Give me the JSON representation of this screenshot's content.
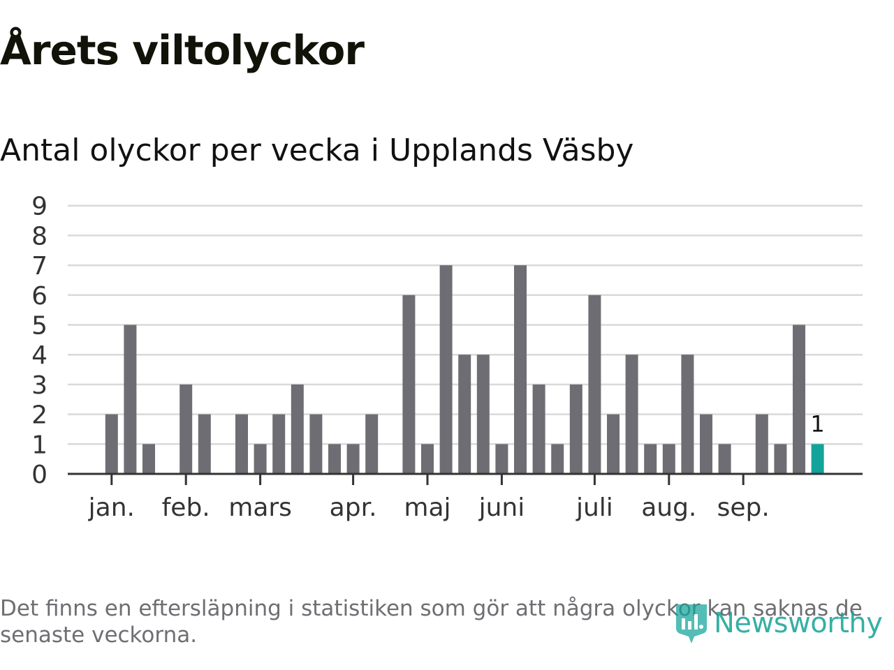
{
  "title": "Årets viltolyckor",
  "subtitle": "Antal olyckor per vecka i Upplands Väsby",
  "footnote": "Det finns en eftersläpning i statistiken som gör att några olyckor kan saknas de senaste veckorna.",
  "logo": {
    "text": "Newsworthy",
    "icon": "newsworthy-logo-icon"
  },
  "colors": {
    "bar": "#6e6d73",
    "highlight": "#12a39a",
    "grid": "#d9d9d9",
    "axis": "#333333",
    "text": "#111111",
    "muted": "#6e6e73"
  },
  "chart_data": {
    "type": "bar",
    "title": "Årets viltolyckor",
    "subtitle": "Antal olyckor per vecka i Upplands Väsby",
    "xlabel": "",
    "ylabel": "",
    "ylim": [
      0,
      9
    ],
    "yticks": [
      0,
      1,
      2,
      3,
      4,
      5,
      6,
      7,
      8,
      9
    ],
    "grid": true,
    "weeks": [
      1,
      2,
      3,
      4,
      5,
      6,
      7,
      8,
      9,
      10,
      11,
      12,
      13,
      14,
      15,
      16,
      17,
      18,
      19,
      20,
      21,
      22,
      23,
      24,
      25,
      26,
      27,
      28,
      29,
      30,
      31,
      32,
      33,
      34,
      35,
      36,
      37,
      38,
      39,
      40,
      41,
      42
    ],
    "values": [
      0,
      0,
      2,
      5,
      1,
      0,
      3,
      2,
      0,
      2,
      1,
      2,
      3,
      2,
      1,
      1,
      2,
      0,
      6,
      1,
      7,
      4,
      4,
      1,
      7,
      3,
      1,
      3,
      6,
      2,
      4,
      1,
      1,
      4,
      2,
      1,
      0,
      2,
      1,
      5,
      1,
      0
    ],
    "highlight_index": 40,
    "highlight_label": "1",
    "month_ticks": [
      {
        "label": "jan.",
        "week": 3
      },
      {
        "label": "feb.",
        "week": 7
      },
      {
        "label": "mars",
        "week": 11
      },
      {
        "label": "apr.",
        "week": 16
      },
      {
        "label": "maj",
        "week": 20
      },
      {
        "label": "juni",
        "week": 24
      },
      {
        "label": "juli",
        "week": 29
      },
      {
        "label": "aug.",
        "week": 33
      },
      {
        "label": "sep.",
        "week": 37
      }
    ]
  }
}
